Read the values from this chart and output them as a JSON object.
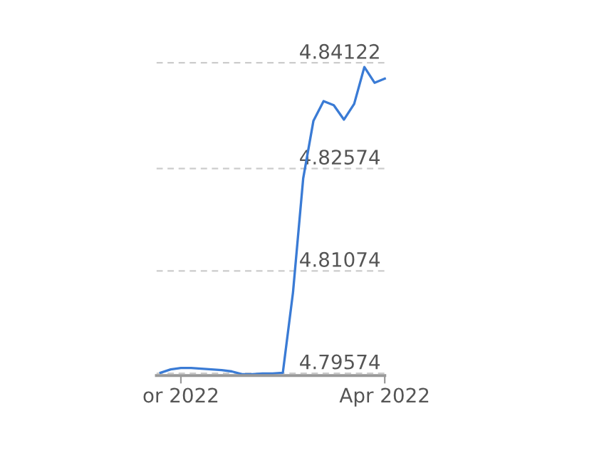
{
  "chart_data": {
    "type": "line",
    "categories": [
      null,
      null,
      "or 2022",
      null,
      null,
      null,
      null,
      null,
      null,
      null,
      null,
      null,
      null,
      null,
      null,
      null,
      null,
      null,
      null,
      null,
      null,
      null,
      "Apr 2022"
    ],
    "series": [
      {
        "color": "#3a7bd5",
        "values": [
          4.7958,
          4.7963,
          4.7965,
          4.7965,
          4.7964,
          4.7963,
          4.7962,
          4.796,
          4.7956,
          4.7956,
          4.7957,
          4.7957,
          4.7958,
          4.8076,
          4.8243,
          4.8327,
          4.8356,
          4.835,
          4.8329,
          4.8352,
          4.8406,
          4.8383,
          4.8389
        ]
      }
    ],
    "ylim": [
      4.7954,
      4.8414
    ],
    "yticks": [
      4.79574,
      4.81074,
      4.82574,
      4.84122
    ],
    "grid": "y",
    "marker": "none",
    "line_style": "solid"
  }
}
